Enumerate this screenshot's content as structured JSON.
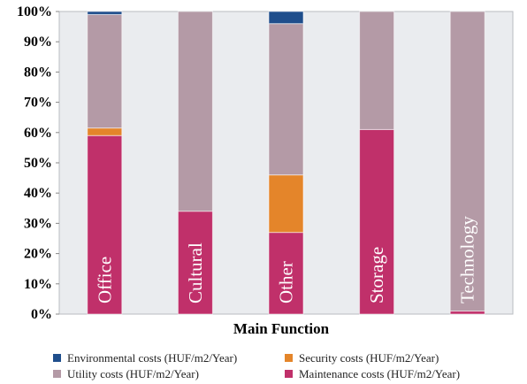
{
  "chart_data": {
    "type": "bar",
    "stacked": true,
    "percent": true,
    "xlabel": "Main Function",
    "ylabel": "",
    "ylim": [
      0,
      100
    ],
    "y_ticks": [
      "0%",
      "10%",
      "20%",
      "30%",
      "40%",
      "50%",
      "60%",
      "70%",
      "80%",
      "90%",
      "100%"
    ],
    "categories": [
      "Office",
      "Cultural",
      "Other",
      "Storage",
      "Technology"
    ],
    "series": [
      {
        "name": "Maintenance costs (HUF/m2/Year)",
        "color": "#c0306a",
        "values": [
          59,
          34,
          27,
          61,
          1
        ]
      },
      {
        "name": "Security costs (HUF/m2/Year)",
        "color": "#e4852a",
        "values": [
          2.5,
          0,
          19,
          0,
          0
        ]
      },
      {
        "name": "Utility costs (HUF/m2/Year)",
        "color": "#b49aa6",
        "values": [
          37.5,
          66,
          50,
          39,
          99
        ]
      },
      {
        "name": "Environmental costs (HUF/m2/Year)",
        "color": "#1f4e8c",
        "values": [
          1,
          0,
          4,
          0,
          0
        ]
      }
    ],
    "legend": {
      "placement": "bottom",
      "entries": [
        "Environmental costs (HUF/m2/Year)",
        "Security costs (HUF/m2/Year)",
        "Utility costs (HUF/m2/Year)",
        "Maintenance costs (HUF/m2/Year)"
      ]
    },
    "grid": false
  }
}
